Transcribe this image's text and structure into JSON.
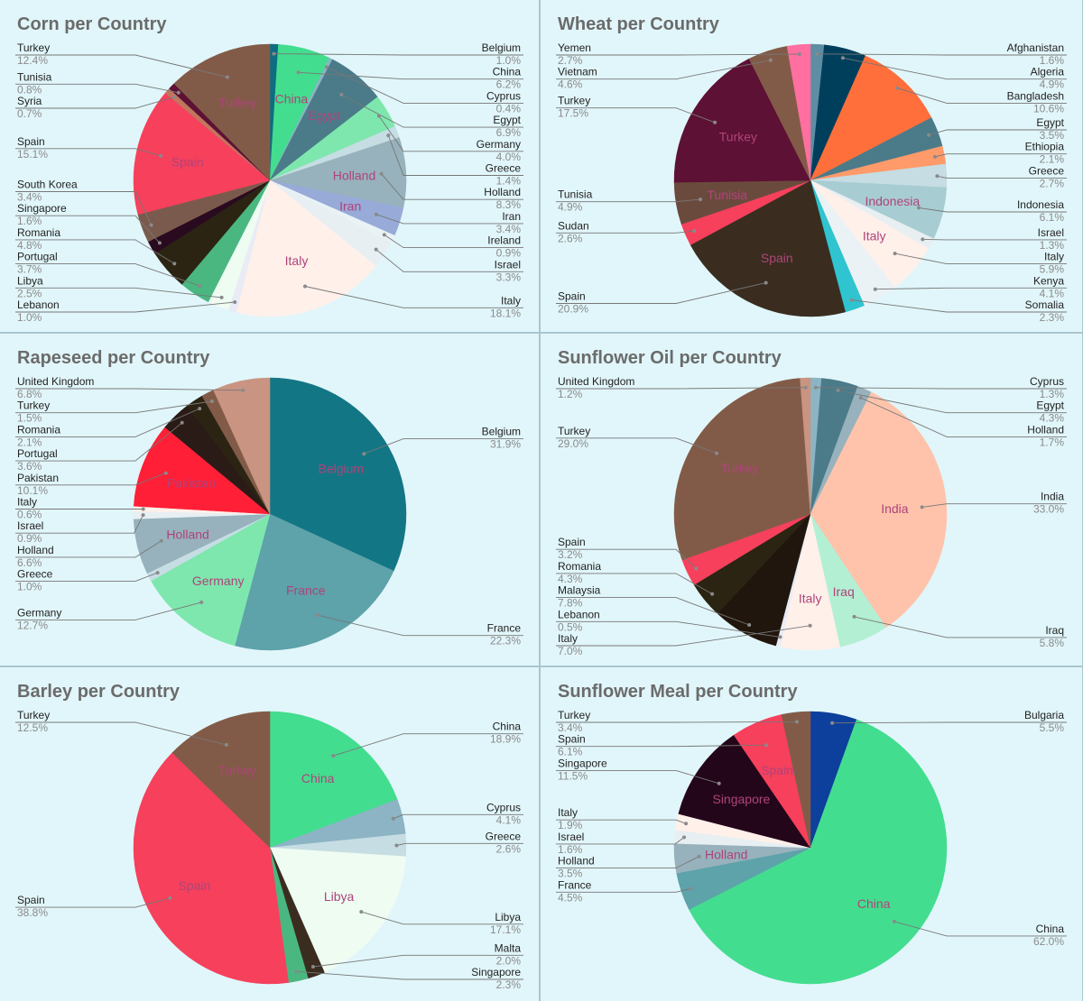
{
  "charts": [
    {
      "type": "pie",
      "title": "Corn per Country",
      "slices": [
        {
          "label": "Belgium",
          "value": 1.0,
          "pct": "1.0%",
          "color": "#0e6d80",
          "side": "right"
        },
        {
          "label": "China",
          "value": 6.2,
          "pct": "6.2%",
          "color": "#43dd8f",
          "side": "right",
          "inner": true
        },
        {
          "label": "Cyprus",
          "value": 0.4,
          "pct": "0.4%",
          "color": "#8cb4c4",
          "side": "right"
        },
        {
          "label": "Egypt",
          "value": 6.9,
          "pct": "6.9%",
          "color": "#4b7b89",
          "side": "right",
          "inner": true
        },
        {
          "label": "Germany",
          "value": 4.0,
          "pct": "4.0%",
          "color": "#7ee7ae",
          "side": "right"
        },
        {
          "label": "Greece",
          "value": 1.4,
          "pct": "1.4%",
          "color": "#c6dde3",
          "side": "right"
        },
        {
          "label": "Holland",
          "value": 8.3,
          "pct": "8.3%",
          "color": "#97b2bc",
          "side": "right",
          "inner": true
        },
        {
          "label": "Iran",
          "value": 3.4,
          "pct": "3.4%",
          "color": "#98aad8",
          "side": "right",
          "inner": true
        },
        {
          "label": "Ireland",
          "value": 0.9,
          "pct": "0.9%",
          "color": "#e9f3f6",
          "side": "right"
        },
        {
          "label": "Israel",
          "value": 3.3,
          "pct": "3.3%",
          "color": "#e7eff2",
          "side": "right"
        },
        {
          "label": "Italy",
          "value": 18.1,
          "pct": "18.1%",
          "color": "#fff0ea",
          "side": "right",
          "inner": true
        },
        {
          "label": "Lebanon",
          "value": 1.0,
          "pct": "1.0%",
          "color": "#e9ecf5",
          "side": "left"
        },
        {
          "label": "Libya",
          "value": 2.5,
          "pct": "2.5%",
          "color": "#eefcf2",
          "side": "left"
        },
        {
          "label": "Portugal",
          "value": 3.7,
          "pct": "3.7%",
          "color": "#4ab781",
          "side": "left"
        },
        {
          "label": "Romania",
          "value": 4.8,
          "pct": "4.8%",
          "color": "#2b2413",
          "side": "left"
        },
        {
          "label": "Singapore",
          "value": 1.6,
          "pct": "1.6%",
          "color": "#2a0a1e",
          "side": "left"
        },
        {
          "label": "South Korea",
          "value": 3.4,
          "pct": "3.4%",
          "color": "#7a5a4d",
          "side": "left"
        },
        {
          "label": "Spain",
          "value": 15.1,
          "pct": "15.1%",
          "color": "#f6405c",
          "side": "left",
          "inner": true
        },
        {
          "label": "Syria",
          "value": 0.7,
          "pct": "0.7%",
          "color": "#c1755f",
          "side": "left"
        },
        {
          "label": "Tunisia",
          "value": 0.8,
          "pct": "0.8%",
          "color": "#5d1134",
          "side": "left"
        },
        {
          "label": "Turkey",
          "value": 12.4,
          "pct": "12.4%",
          "color": "#825b48",
          "side": "left",
          "inner": true
        }
      ]
    },
    {
      "type": "pie",
      "title": "Wheat per Country",
      "slices": [
        {
          "label": "Afghanistan",
          "value": 1.6,
          "pct": "1.6%",
          "color": "#5e8ea3",
          "side": "right"
        },
        {
          "label": "Algeria",
          "value": 4.9,
          "pct": "4.9%",
          "color": "#003f5c",
          "side": "right"
        },
        {
          "label": "Bangladesh",
          "value": 10.6,
          "pct": "10.6%",
          "color": "#ff6f3c",
          "side": "right"
        },
        {
          "label": "Egypt",
          "value": 3.5,
          "pct": "3.5%",
          "color": "#4b7b89",
          "side": "right"
        },
        {
          "label": "Ethiopia",
          "value": 2.1,
          "pct": "2.1%",
          "color": "#ff9a6a",
          "side": "right"
        },
        {
          "label": "Greece",
          "value": 2.7,
          "pct": "2.7%",
          "color": "#c6dde3",
          "side": "right"
        },
        {
          "label": "Indonesia",
          "value": 6.1,
          "pct": "6.1%",
          "color": "#a7cdd3",
          "side": "right",
          "inner": true
        },
        {
          "label": "Israel",
          "value": 1.3,
          "pct": "1.3%",
          "color": "#e7eff2",
          "side": "right"
        },
        {
          "label": "Italy",
          "value": 5.9,
          "pct": "5.9%",
          "color": "#fff0ea",
          "side": "right",
          "inner": true
        },
        {
          "label": "Kenya",
          "value": 4.1,
          "pct": "4.1%",
          "color": "#ebf2f5",
          "side": "right"
        },
        {
          "label": "Somalia",
          "value": 2.3,
          "pct": "2.3%",
          "color": "#2fc4cf",
          "side": "right"
        },
        {
          "label": "Spain",
          "value": 20.9,
          "pct": "20.9%",
          "color": "#3a2d20",
          "side": "left",
          "inner": true
        },
        {
          "label": "Sudan",
          "value": 2.6,
          "pct": "2.6%",
          "color": "#f6405c",
          "side": "left"
        },
        {
          "label": "Tunisia",
          "value": 4.9,
          "pct": "4.9%",
          "color": "#6b4a3e",
          "side": "left",
          "inner": true
        },
        {
          "label": "Turkey",
          "value": 17.5,
          "pct": "17.5%",
          "color": "#5d1134",
          "side": "left",
          "inner": true
        },
        {
          "label": "Vietnam",
          "value": 4.6,
          "pct": "4.6%",
          "color": "#825b48",
          "side": "left"
        },
        {
          "label": "Yemen",
          "value": 2.7,
          "pct": "2.7%",
          "color": "#ff6fa0",
          "side": "left"
        }
      ]
    },
    {
      "type": "pie",
      "title": "Rapeseed per Country",
      "slices": [
        {
          "label": "Belgium",
          "value": 31.9,
          "pct": "31.9%",
          "color": "#137685",
          "side": "right",
          "inner": true
        },
        {
          "label": "France",
          "value": 22.3,
          "pct": "22.3%",
          "color": "#5ea2aa",
          "side": "right",
          "inner": true
        },
        {
          "label": "Germany",
          "value": 12.7,
          "pct": "12.7%",
          "color": "#7ee7ae",
          "side": "left",
          "inner": true
        },
        {
          "label": "Greece",
          "value": 1.0,
          "pct": "1.0%",
          "color": "#c6dde3",
          "side": "left"
        },
        {
          "label": "Holland",
          "value": 6.6,
          "pct": "6.6%",
          "color": "#97b2bc",
          "side": "left",
          "inner": true
        },
        {
          "label": "Israel",
          "value": 0.9,
          "pct": "0.9%",
          "color": "#e7eff2",
          "side": "left"
        },
        {
          "label": "Italy",
          "value": 0.6,
          "pct": "0.6%",
          "color": "#fff0ea",
          "side": "left"
        },
        {
          "label": "Pakistan",
          "value": 10.1,
          "pct": "10.1%",
          "color": "#ff1f37",
          "side": "left",
          "inner": true
        },
        {
          "label": "Portugal",
          "value": 3.6,
          "pct": "3.6%",
          "color": "#2a1b16",
          "side": "left"
        },
        {
          "label": "Romania",
          "value": 2.1,
          "pct": "2.1%",
          "color": "#2b2413",
          "side": "left"
        },
        {
          "label": "Turkey",
          "value": 1.5,
          "pct": "1.5%",
          "color": "#825b48",
          "side": "left"
        },
        {
          "label": "United Kingdom",
          "value": 6.8,
          "pct": "6.8%",
          "color": "#c99482",
          "side": "left"
        }
      ]
    },
    {
      "type": "pie",
      "title": "Sunflower Oil per Country",
      "slices": [
        {
          "label": "Cyprus",
          "value": 1.3,
          "pct": "1.3%",
          "color": "#8cb4c4",
          "side": "right"
        },
        {
          "label": "Egypt",
          "value": 4.3,
          "pct": "4.3%",
          "color": "#4b7b89",
          "side": "right"
        },
        {
          "label": "Holland",
          "value": 1.7,
          "pct": "1.7%",
          "color": "#97b2bc",
          "side": "right"
        },
        {
          "label": "India",
          "value": 33.0,
          "pct": "33.0%",
          "color": "#ffc3ac",
          "side": "right",
          "inner": true
        },
        {
          "label": "Iraq",
          "value": 5.8,
          "pct": "5.8%",
          "color": "#b3efd3",
          "side": "right",
          "inner": true
        },
        {
          "label": "Italy",
          "value": 7.0,
          "pct": "7.0%",
          "color": "#fff0ea",
          "side": "left",
          "inner": true
        },
        {
          "label": "Lebanon",
          "value": 0.5,
          "pct": "0.5%",
          "color": "#e9ecf5",
          "side": "left"
        },
        {
          "label": "Malaysia",
          "value": 7.8,
          "pct": "7.8%",
          "color": "#21160d",
          "side": "left"
        },
        {
          "label": "Romania",
          "value": 4.3,
          "pct": "4.3%",
          "color": "#2b2413",
          "side": "left"
        },
        {
          "label": "Spain",
          "value": 3.2,
          "pct": "3.2%",
          "color": "#f6405c",
          "side": "left"
        },
        {
          "label": "Turkey",
          "value": 29.0,
          "pct": "29.0%",
          "color": "#825b48",
          "side": "left",
          "inner": true
        },
        {
          "label": "United Kingdom",
          "value": 1.2,
          "pct": "1.2%",
          "color": "#c99482",
          "side": "left"
        }
      ]
    },
    {
      "type": "pie",
      "title": "Barley per Country",
      "slices": [
        {
          "label": "China",
          "value": 18.9,
          "pct": "18.9%",
          "color": "#43dd8f",
          "side": "right",
          "inner": true
        },
        {
          "label": "Cyprus",
          "value": 4.1,
          "pct": "4.1%",
          "color": "#8cb4c4",
          "side": "right"
        },
        {
          "label": "Greece",
          "value": 2.6,
          "pct": "2.6%",
          "color": "#c6dde3",
          "side": "right"
        },
        {
          "label": "Libya",
          "value": 17.1,
          "pct": "17.1%",
          "color": "#eefcf2",
          "side": "right",
          "inner": true
        },
        {
          "label": "Malta",
          "value": 2.0,
          "pct": "2.0%",
          "color": "#3a2d20",
          "side": "right"
        },
        {
          "label": "Singapore",
          "value": 2.3,
          "pct": "2.3%",
          "color": "#4ab781",
          "side": "right"
        },
        {
          "label": "Spain",
          "value": 38.8,
          "pct": "38.8%",
          "color": "#f6405c",
          "side": "left",
          "inner": true
        },
        {
          "label": "Turkey",
          "value": 12.5,
          "pct": "12.5%",
          "color": "#825b48",
          "side": "left",
          "inner": true
        }
      ]
    },
    {
      "type": "pie",
      "title": "Sunflower Meal per Country",
      "slices": [
        {
          "label": "Bulgaria",
          "value": 5.5,
          "pct": "5.5%",
          "color": "#0d3f9c",
          "side": "right"
        },
        {
          "label": "China",
          "value": 62.0,
          "pct": "62.0%",
          "color": "#43dd8f",
          "side": "right",
          "inner": true
        },
        {
          "label": "France",
          "value": 4.5,
          "pct": "4.5%",
          "color": "#5ea2aa",
          "side": "left"
        },
        {
          "label": "Holland",
          "value": 3.5,
          "pct": "3.5%",
          "color": "#97b2bc",
          "side": "left",
          "inner": true
        },
        {
          "label": "Israel",
          "value": 1.6,
          "pct": "1.6%",
          "color": "#e7eff2",
          "side": "left"
        },
        {
          "label": "Italy",
          "value": 1.9,
          "pct": "1.9%",
          "color": "#fff0ea",
          "side": "left"
        },
        {
          "label": "Singapore",
          "value": 11.5,
          "pct": "11.5%",
          "color": "#24061a",
          "side": "left",
          "inner": true
        },
        {
          "label": "Spain",
          "value": 6.1,
          "pct": "6.1%",
          "color": "#f6405c",
          "side": "left",
          "inner": true
        },
        {
          "label": "Turkey",
          "value": 3.4,
          "pct": "3.4%",
          "color": "#825b48",
          "side": "left"
        }
      ]
    }
  ]
}
